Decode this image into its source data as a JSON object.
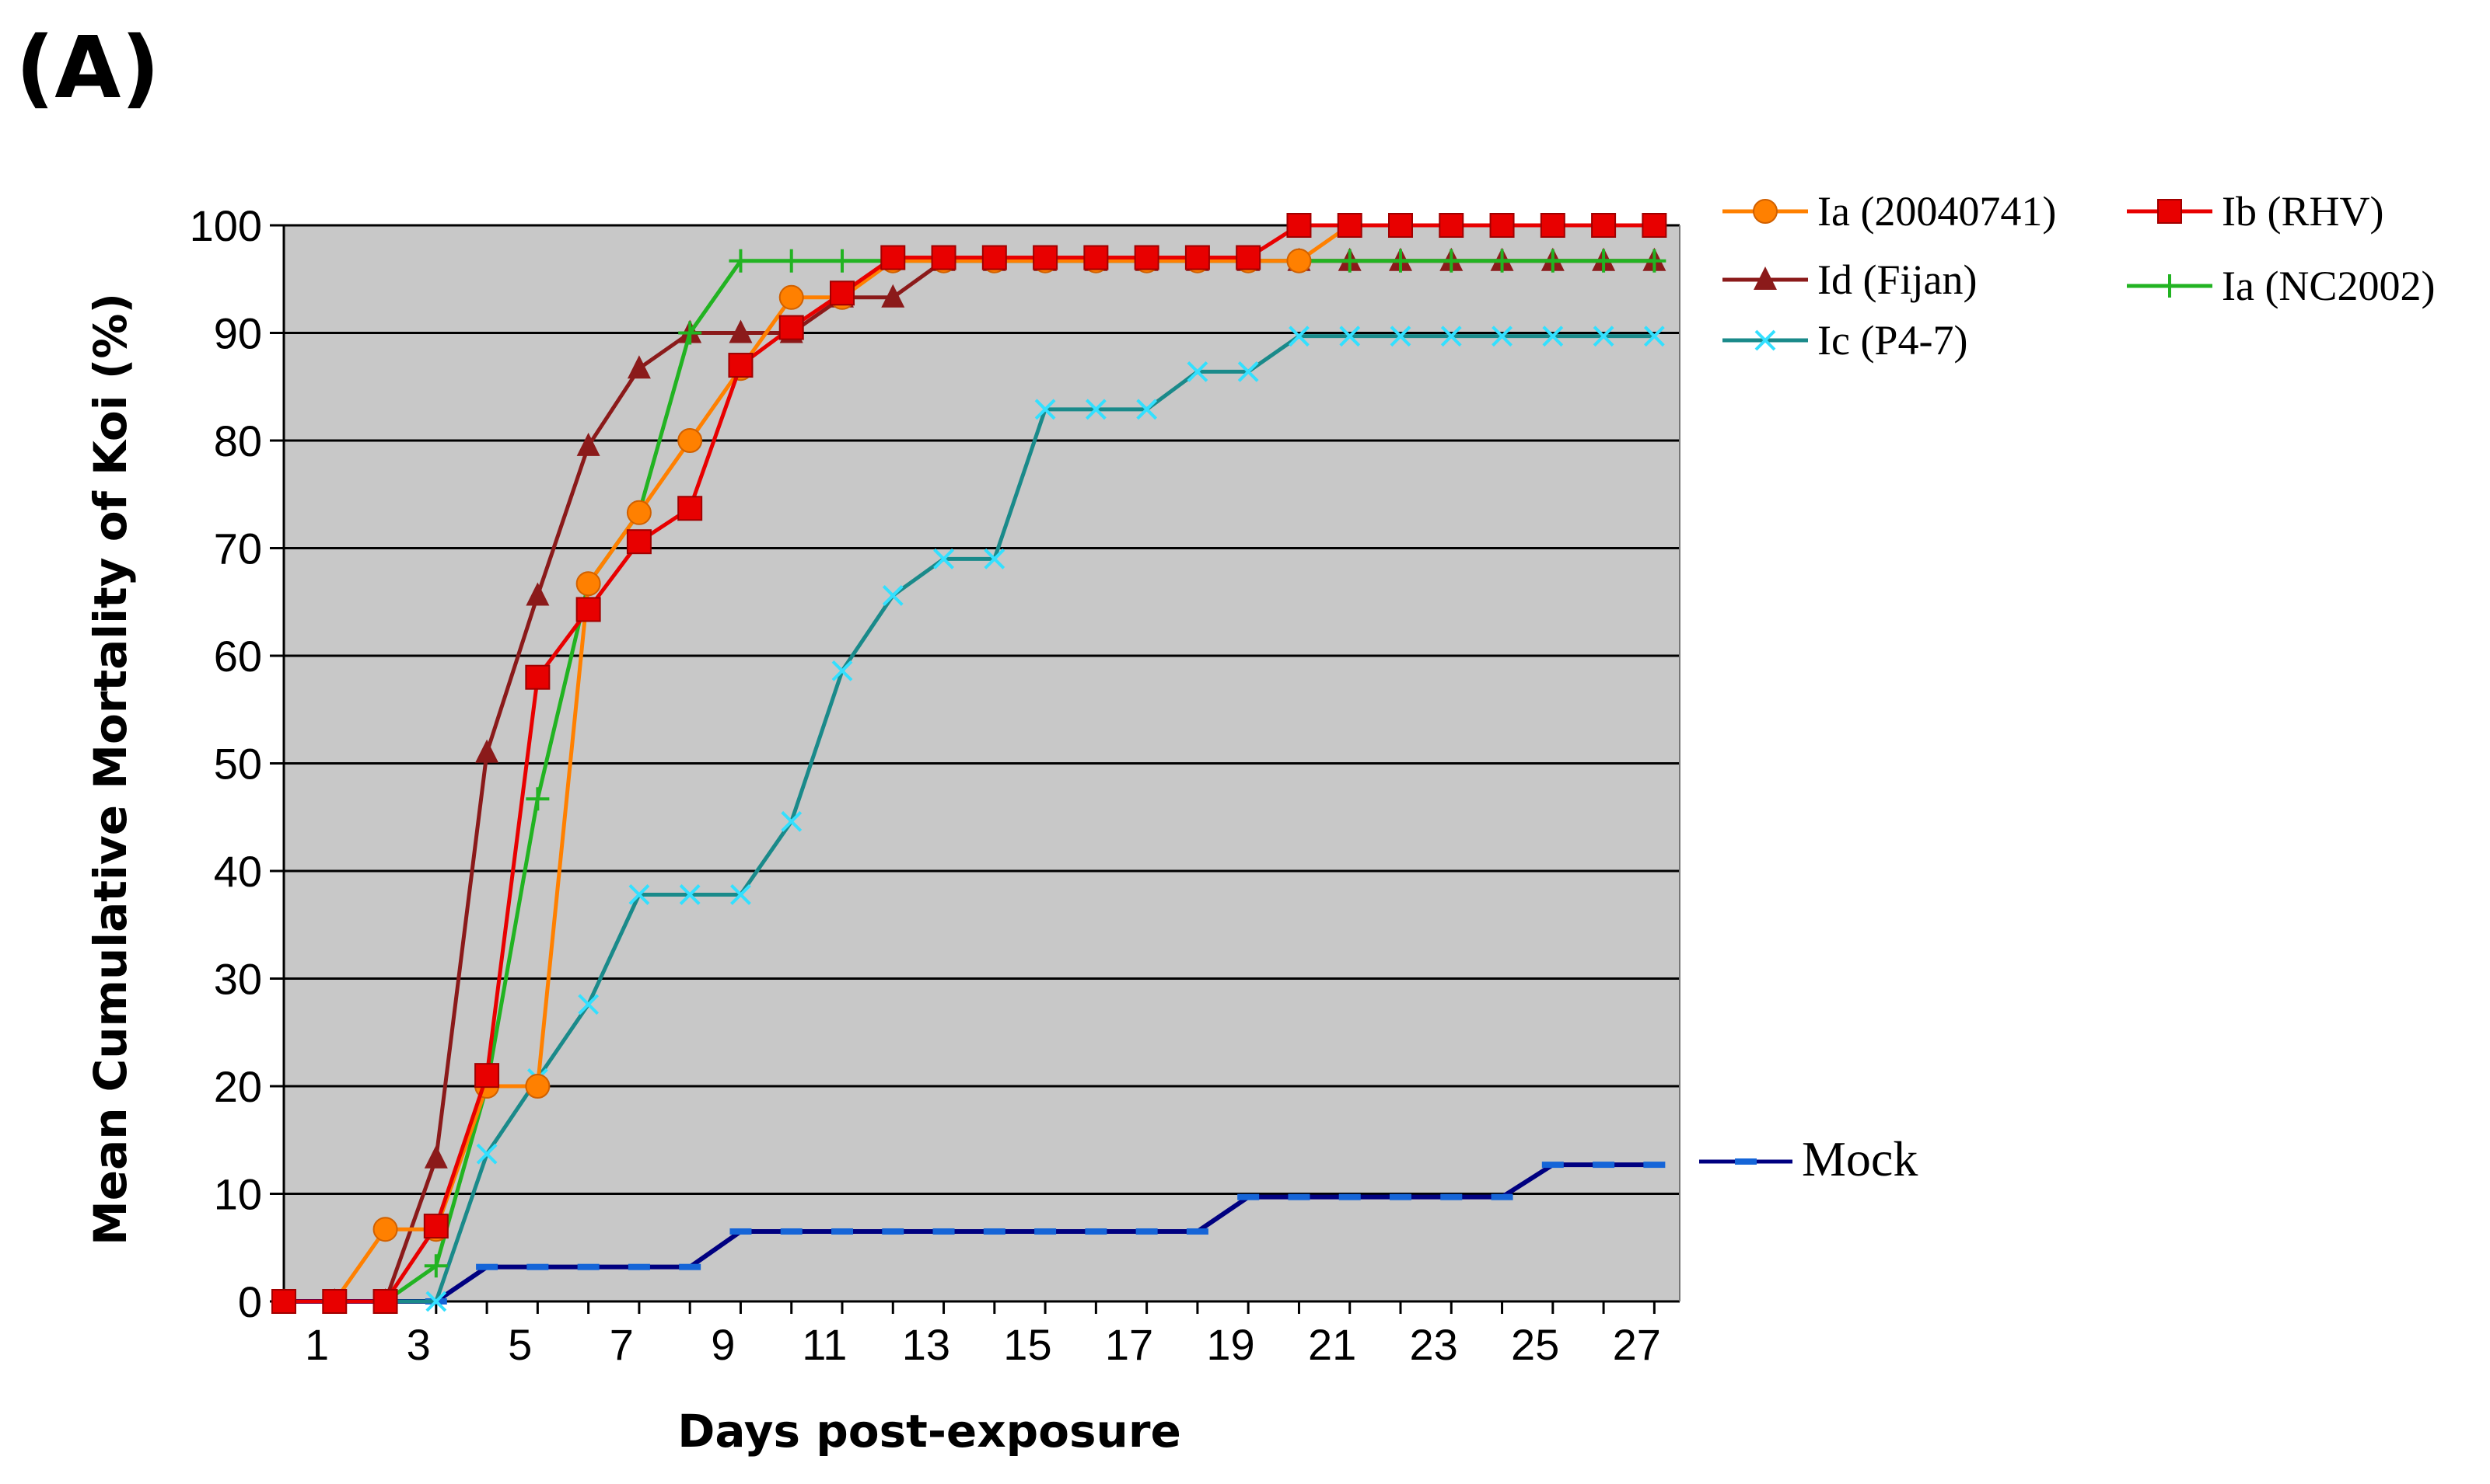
{
  "panel_label": "(A)",
  "chart_data": {
    "type": "line",
    "title": "",
    "xlabel": "Days post-exposure",
    "ylabel": "Mean Cumulative Mortality of Koi (%)",
    "xlim": [
      0.5,
      28
    ],
    "ylim": [
      0,
      100
    ],
    "x_ticks": [
      1,
      3,
      5,
      7,
      9,
      11,
      13,
      15,
      17,
      19,
      21,
      23,
      25,
      27
    ],
    "y_ticks": [
      0,
      10,
      20,
      30,
      40,
      50,
      60,
      70,
      80,
      90,
      100
    ],
    "grid": "horizontal",
    "background": "#c8c8c8",
    "x": [
      1,
      2,
      3,
      4,
      5,
      6,
      7,
      8,
      9,
      10,
      11,
      12,
      13,
      14,
      15,
      16,
      17,
      18,
      19,
      20,
      21,
      22,
      23,
      24,
      25,
      26,
      27,
      28
    ],
    "series": [
      {
        "name": "Ia (20040741)",
        "color": "#ff8000",
        "marker": "circle",
        "values": [
          0,
          0,
          6.7,
          6.7,
          20,
          20,
          66.7,
          73.3,
          80,
          86.7,
          93.3,
          93.3,
          96.7,
          96.7,
          96.7,
          96.7,
          96.7,
          96.7,
          96.7,
          96.7,
          96.7,
          100,
          100,
          100,
          100,
          100,
          100,
          100
        ]
      },
      {
        "name": "Ib (RHV)",
        "color": "#e80000",
        "marker": "square",
        "values": [
          0,
          0,
          0,
          7,
          21,
          58,
          64.3,
          70.6,
          73.7,
          87,
          90.5,
          93.7,
          97,
          97,
          97,
          97,
          97,
          97,
          97,
          97,
          100,
          100,
          100,
          100,
          100,
          100,
          100,
          100
        ]
      },
      {
        "name": "Id (Fijan)",
        "color": "#8b1a1a",
        "marker": "triangle",
        "values": [
          0,
          0,
          0,
          13.3,
          51,
          65.6,
          79.5,
          86.7,
          90,
          90,
          90,
          93.3,
          93.3,
          96.7,
          96.7,
          96.7,
          96.7,
          96.7,
          96.7,
          96.7,
          96.7,
          96.7,
          96.7,
          96.7,
          96.7,
          96.7,
          96.7,
          96.7
        ]
      },
      {
        "name": "Ia (NC2002)",
        "color": "#22b322",
        "marker": "plus",
        "values": [
          0,
          0,
          0,
          3.3,
          20,
          46.7,
          66.7,
          73.3,
          90,
          96.7,
          96.7,
          96.7,
          96.7,
          96.7,
          96.7,
          96.7,
          96.7,
          96.7,
          96.7,
          96.7,
          96.7,
          96.7,
          96.7,
          96.7,
          96.7,
          96.7,
          96.7,
          96.7
        ]
      },
      {
        "name": "Ic (P4-7)",
        "color": "#1a8a8a",
        "marker": "x",
        "values": [
          0,
          0,
          0,
          0,
          13.7,
          20.7,
          27.6,
          37.8,
          37.8,
          37.8,
          44.6,
          58.6,
          65.6,
          69,
          69,
          82.9,
          82.9,
          82.9,
          86.4,
          86.4,
          89.7,
          89.7,
          89.7,
          89.7,
          89.7,
          89.7,
          89.7,
          89.7
        ]
      },
      {
        "name": "Mock",
        "color": "#000080",
        "marker": "dash",
        "values": [
          0,
          0,
          0,
          0,
          3.2,
          3.2,
          3.2,
          3.2,
          3.2,
          6.5,
          6.5,
          6.5,
          6.5,
          6.5,
          6.5,
          6.5,
          6.5,
          6.5,
          6.5,
          9.7,
          9.7,
          9.7,
          9.7,
          9.7,
          9.7,
          12.7,
          12.7,
          12.7
        ]
      }
    ]
  }
}
